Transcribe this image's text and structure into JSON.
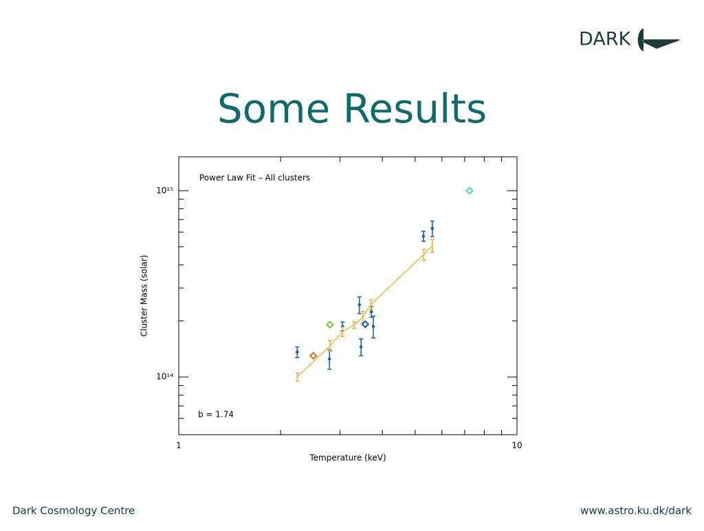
{
  "slide": {
    "logo": "DARK",
    "title": "Some Results",
    "footer_left": "Dark Cosmology Centre",
    "footer_right": "www.astro.ku.dk/dark"
  },
  "chart_data": {
    "type": "scatter",
    "annotations": [
      "Power Law Fit – All clusters",
      "b = 1.74"
    ],
    "x_label": "Temperature (keV)",
    "y_label": "Cluster Mass (solar)",
    "xscale": "log",
    "yscale": "log",
    "xlim": [
      1,
      10
    ],
    "ylim": [
      49000000000000.0,
      1520000000000000.0
    ],
    "xticks": [
      1,
      10
    ],
    "yticks": [
      {
        "value": 100000000000000.0,
        "label": "10¹⁴"
      },
      {
        "value": 1000000000000000.0,
        "label": "10¹⁵"
      }
    ],
    "xminor": [
      2,
      3,
      4,
      5,
      6,
      7,
      8,
      9
    ],
    "yminor": [
      60000000000000.0,
      70000000000000.0,
      80000000000000.0,
      90000000000000.0,
      200000000000000.0,
      300000000000000.0,
      400000000000000.0,
      500000000000000.0,
      600000000000000.0,
      700000000000000.0,
      800000000000000.0,
      900000000000000.0
    ],
    "series": [
      {
        "color": "#1f5fbf",
        "marker": "circle",
        "x": [
          2.24,
          2.79,
          3.05,
          3.46,
          3.42,
          3.71,
          3.76,
          5.29,
          5.62
        ],
        "values": [
          136000000000000.0,
          125000000000000.0,
          187000000000000.0,
          145000000000000.0,
          244000000000000.0,
          224000000000000.0,
          187000000000000.0,
          570000000000000.0,
          627000000000000.0
        ],
        "errors": [
          9000000000000.0,
          15000000000000.0,
          10000000000000.0,
          15000000000000.0,
          25000000000000.0,
          15000000000000.0,
          25000000000000.0,
          35000000000000.0,
          60000000000000.0
        ]
      },
      {
        "color": "#e8b830",
        "line": true,
        "x": [
          2.24,
          2.8,
          3.05,
          3.3,
          3.5,
          3.7,
          5.3,
          5.62
        ],
        "values": [
          100000000000000.0,
          147000000000000.0,
          175000000000000.0,
          190000000000000.0,
          210000000000000.0,
          245000000000000.0,
          454000000000000.0,
          507000000000000.0
        ],
        "errors": [
          5000000000000.0,
          10000000000000.0,
          10000000000000.0,
          8000000000000.0,
          15000000000000.0,
          15000000000000.0,
          30000000000000.0,
          40000000000000.0
        ]
      },
      {
        "color": "#7ccf3a",
        "marker": "diamond",
        "x": [
          2.8
        ],
        "values": [
          191000000000000.0
        ]
      },
      {
        "color": "#d2782a",
        "marker": "diamond",
        "x": [
          2.5
        ],
        "values": [
          130000000000000.0
        ]
      },
      {
        "color": "#1f5fbf",
        "marker": "diamond",
        "x": [
          3.56
        ],
        "values": [
          192000000000000.0
        ]
      },
      {
        "color": "#5fd8c8",
        "marker": "diamond",
        "x": [
          7.24
        ],
        "values": [
          1000000000000000.0
        ]
      }
    ]
  }
}
